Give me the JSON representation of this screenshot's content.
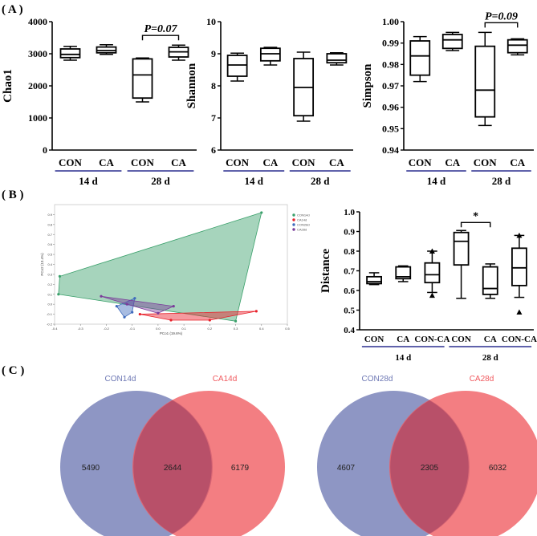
{
  "panel_labels": {
    "a": "( A )",
    "b": "( B )",
    "c": "( C )"
  },
  "chart_data": [
    {
      "type": "boxplot",
      "title": "",
      "ylabel": "Chao1",
      "ylim": [
        0,
        4000
      ],
      "yticks": [
        "0",
        "1000",
        "2000",
        "3000",
        "4000"
      ],
      "categories": [
        "CON",
        "CA",
        "CON",
        "CA"
      ],
      "groups": [
        {
          "label": "14 d",
          "members": [
            0,
            1
          ]
        },
        {
          "label": "28 d",
          "members": [
            2,
            3
          ]
        }
      ],
      "boxes": [
        {
          "min": 2800,
          "q1": 2880,
          "median": 2980,
          "q3": 3150,
          "max": 3230
        },
        {
          "min": 2980,
          "q1": 3030,
          "median": 3100,
          "q3": 3210,
          "max": 3280
        },
        {
          "min": 1500,
          "q1": 1620,
          "median": 2340,
          "q3": 2840,
          "max": 2870
        },
        {
          "min": 2800,
          "q1": 2900,
          "median": 3060,
          "q3": 3200,
          "max": 3270
        }
      ],
      "annotation": {
        "text": "P=0.07",
        "from": 2,
        "to": 3
      }
    },
    {
      "type": "boxplot",
      "title": "",
      "ylabel": "Shannon",
      "ylim": [
        6,
        10
      ],
      "yticks": [
        "6",
        "7",
        "8",
        "9",
        "10"
      ],
      "categories": [
        "CON",
        "CA",
        "CON",
        "CA"
      ],
      "groups": [
        {
          "label": "14 d",
          "members": [
            0,
            1
          ]
        },
        {
          "label": "28 d",
          "members": [
            2,
            3
          ]
        }
      ],
      "boxes": [
        {
          "min": 8.15,
          "q1": 8.3,
          "median": 8.65,
          "q3": 8.95,
          "max": 9.02
        },
        {
          "min": 8.65,
          "q1": 8.78,
          "median": 9.0,
          "q3": 9.17,
          "max": 9.2
        },
        {
          "min": 6.9,
          "q1": 7.07,
          "median": 7.95,
          "q3": 8.85,
          "max": 9.05
        },
        {
          "min": 8.65,
          "q1": 8.72,
          "median": 8.8,
          "q3": 9.0,
          "max": 9.03
        }
      ],
      "annotation": null
    },
    {
      "type": "boxplot",
      "title": "",
      "ylabel": "Simpson",
      "ylim": [
        0.94,
        1.0
      ],
      "yticks": [
        "0.94",
        "0.95",
        "0.96",
        "0.97",
        "0.98",
        "0.99",
        "1.00"
      ],
      "categories": [
        "CON",
        "CA",
        "CON",
        "CA"
      ],
      "groups": [
        {
          "label": "14 d",
          "members": [
            0,
            1
          ]
        },
        {
          "label": "28 d",
          "members": [
            2,
            3
          ]
        }
      ],
      "boxes": [
        {
          "min": 0.972,
          "q1": 0.975,
          "median": 0.984,
          "q3": 0.991,
          "max": 0.993
        },
        {
          "min": 0.9865,
          "q1": 0.9875,
          "median": 0.9915,
          "q3": 0.994,
          "max": 0.995
        },
        {
          "min": 0.9515,
          "q1": 0.9555,
          "median": 0.968,
          "q3": 0.9885,
          "max": 0.995
        },
        {
          "min": 0.9845,
          "q1": 0.9855,
          "median": 0.989,
          "q3": 0.9915,
          "max": 0.992
        }
      ],
      "annotation": {
        "text": "P=0.09",
        "from": 2,
        "to": 3
      }
    },
    {
      "type": "scatter",
      "title": "",
      "xlabel": "PCo1 (19.6%)",
      "ylabel": "PCo2 (13.4%)",
      "xlim": [
        -0.4,
        0.5
      ],
      "ylim": [
        -0.2,
        1.0
      ],
      "xticks": [
        "-0.4",
        "-0.3",
        "-0.2",
        "-0.1",
        "0.0",
        "0.1",
        "0.2",
        "0.3",
        "0.4",
        "0.5"
      ],
      "yticks": [
        "-0.2",
        "-0.1",
        "0.0",
        "0.1",
        "0.2",
        "0.3",
        "0.4",
        "0.5",
        "0.6",
        "0.7",
        "0.8",
        "0.9"
      ],
      "series": [
        {
          "name": "CON14d",
          "color": "#3aa06b",
          "points": [
            [
              -0.38,
              0.28
            ],
            [
              -0.385,
              0.1
            ],
            [
              0.3,
              -0.17
            ],
            [
              0.4,
              0.92
            ]
          ]
        },
        {
          "name": "CA14d",
          "color": "#e8202a",
          "points": [
            [
              -0.07,
              -0.1
            ],
            [
              0.05,
              -0.16
            ],
            [
              0.2,
              -0.16
            ],
            [
              0.38,
              -0.07
            ]
          ]
        },
        {
          "name": "CON28d",
          "color": "#3f6bbd",
          "points": [
            [
              -0.16,
              -0.02
            ],
            [
              -0.13,
              -0.13
            ],
            [
              -0.1,
              -0.08
            ],
            [
              -0.09,
              0.06
            ]
          ]
        },
        {
          "name": "CA28d",
          "color": "#7a3b9a",
          "points": [
            [
              -0.22,
              0.08
            ],
            [
              -0.12,
              0.0
            ],
            [
              0.0,
              -0.09
            ],
            [
              0.06,
              -0.02
            ]
          ]
        }
      ]
    },
    {
      "type": "boxplot",
      "title": "",
      "ylabel": "Distance",
      "ylim": [
        0.4,
        1.0
      ],
      "yticks": [
        "0.4",
        "0.5",
        "0.6",
        "0.7",
        "0.8",
        "0.9",
        "1.0"
      ],
      "categories": [
        "CON",
        "CA",
        "CON-CA",
        "CON",
        "CA",
        "CON-CA"
      ],
      "groups": [
        {
          "label": "14 d",
          "members": [
            0,
            1,
            2
          ]
        },
        {
          "label": "28 d",
          "members": [
            3,
            4,
            5
          ]
        }
      ],
      "boxes": [
        {
          "min": 0.63,
          "q1": 0.635,
          "median": 0.645,
          "q3": 0.67,
          "max": 0.69
        },
        {
          "min": 0.645,
          "q1": 0.66,
          "median": 0.67,
          "q3": 0.72,
          "max": 0.725
        },
        {
          "min": 0.59,
          "q1": 0.64,
          "median": 0.68,
          "q3": 0.74,
          "max": 0.8,
          "outliers": [
            0.575,
            0.8
          ]
        },
        {
          "min": 0.56,
          "q1": 0.73,
          "median": 0.85,
          "q3": 0.895,
          "max": 0.905
        },
        {
          "min": 0.56,
          "q1": 0.58,
          "median": 0.61,
          "q3": 0.72,
          "max": 0.735
        },
        {
          "min": 0.565,
          "q1": 0.625,
          "median": 0.715,
          "q3": 0.815,
          "max": 0.88,
          "outliers": [
            0.88,
            0.49
          ]
        }
      ],
      "annotation": {
        "text": "*",
        "from": 3,
        "to": 4
      }
    },
    {
      "type": "venn",
      "title": "",
      "sets": [
        {
          "name": "CON14d",
          "color": "#6e78b4"
        },
        {
          "name": "CA14d",
          "color": "#f05a5f"
        }
      ],
      "left_only": "5490",
      "overlap": "2644",
      "right_only": "6179"
    },
    {
      "type": "venn",
      "title": "",
      "sets": [
        {
          "name": "CON28d",
          "color": "#6e78b4"
        },
        {
          "name": "CA28d",
          "color": "#f05a5f"
        }
      ],
      "left_only": "4607",
      "overlap": "2305",
      "right_only": "6032"
    }
  ]
}
